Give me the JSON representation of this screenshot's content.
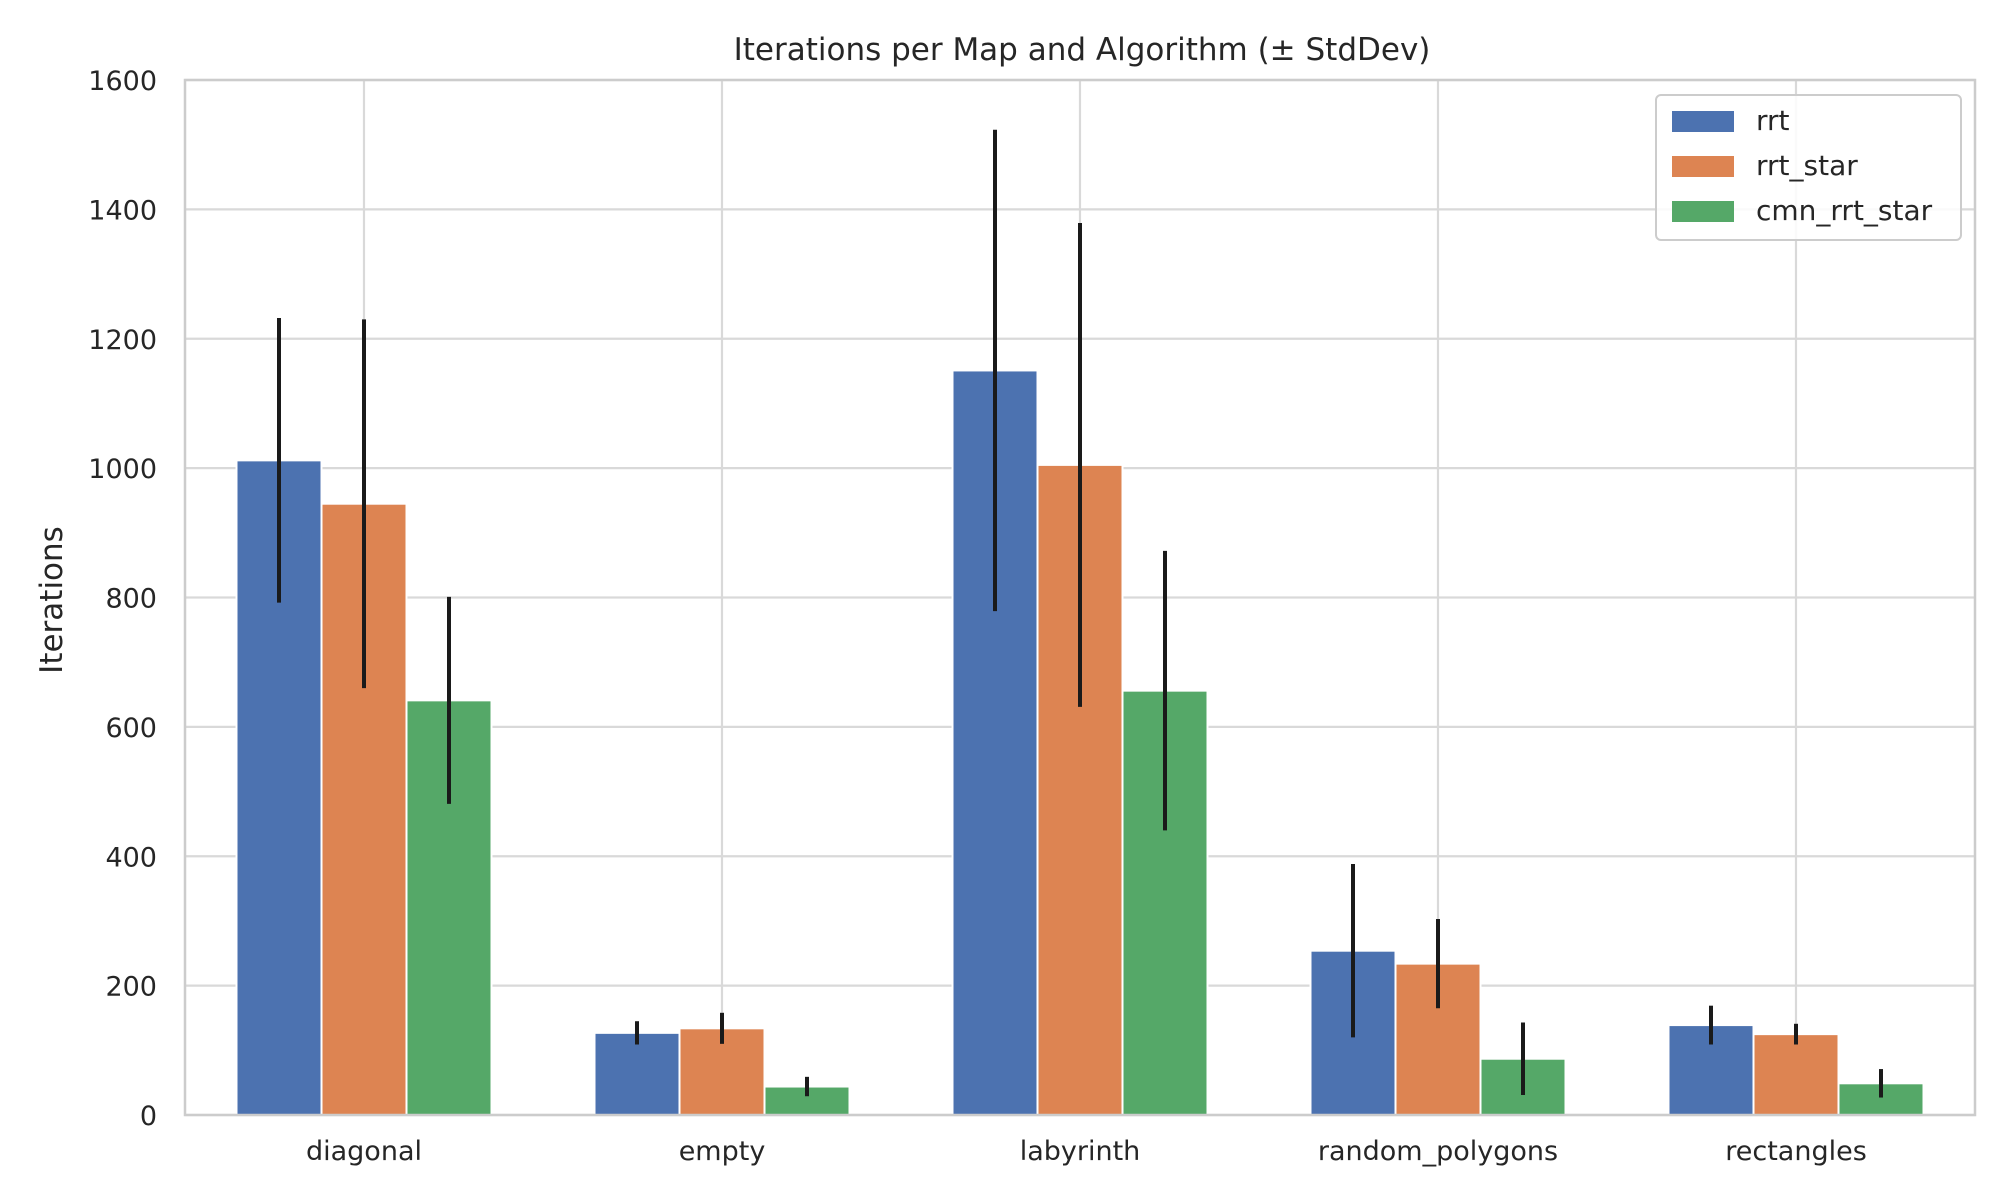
{
  "chart_data": {
    "type": "bar",
    "title": "Iterations per Map and Algorithm (± StdDev)",
    "xlabel": "",
    "ylabel": "Iterations",
    "ylim": [
      0,
      1600
    ],
    "yticks": [
      0,
      200,
      400,
      600,
      800,
      1000,
      1200,
      1400,
      1600
    ],
    "grid": true,
    "legend_position": "top-right",
    "categories": [
      "diagonal",
      "empty",
      "labyrinth",
      "random_polygons",
      "rectangles"
    ],
    "series": [
      {
        "name": "rrt",
        "color": "#4c72b0",
        "values": [
          1012,
          127,
          1151,
          254,
          139
        ],
        "std": [
          220,
          18,
          372,
          134,
          30
        ]
      },
      {
        "name": "rrt_star",
        "color": "#dd8452",
        "values": [
          945,
          134,
          1005,
          234,
          125
        ],
        "std": [
          285,
          24,
          374,
          69,
          16
        ]
      },
      {
        "name": "cmn_rrt_star",
        "color": "#55a868",
        "values": [
          641,
          44,
          656,
          87,
          49
        ],
        "std": [
          160,
          15,
          216,
          56,
          22
        ]
      }
    ]
  }
}
